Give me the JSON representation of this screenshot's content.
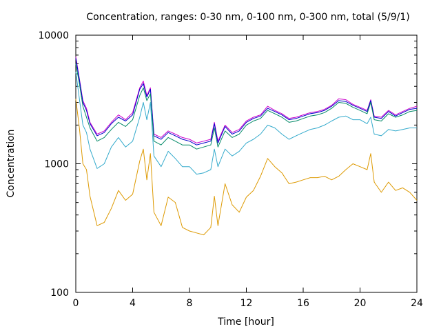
{
  "chart_data": {
    "type": "line",
    "title": "Concentration, ranges: 0-30 nm, 0-100 nm, 0-300 nm, total (5/9/1)",
    "xlabel": "Time [hour]",
    "ylabel": "Concentration",
    "xlim": [
      0,
      24
    ],
    "ylim": [
      100,
      10000
    ],
    "yscale": "log",
    "grid": false,
    "legend": "none",
    "x_ticks": [
      0,
      4,
      8,
      12,
      16,
      20,
      24
    ],
    "x_tick_labels": [
      "0",
      "4",
      "8",
      "12",
      "16",
      "20",
      "24"
    ],
    "y_ticks": [
      100,
      1000,
      10000
    ],
    "y_tick_labels": [
      "100",
      "1000",
      "10000"
    ],
    "x": [
      0,
      0.25,
      0.5,
      0.75,
      1,
      1.5,
      2,
      2.5,
      3,
      3.5,
      4,
      4.5,
      4.75,
      5,
      5.25,
      5.5,
      6,
      6.5,
      7,
      7.5,
      8,
      8.5,
      9,
      9.5,
      9.75,
      10,
      10.5,
      11,
      11.5,
      12,
      12.5,
      13,
      13.5,
      14,
      14.5,
      15,
      15.5,
      16,
      16.5,
      17,
      17.5,
      18,
      18.5,
      19,
      19.5,
      20,
      20.5,
      20.75,
      21,
      21.5,
      22,
      22.5,
      23,
      23.5,
      24
    ],
    "series": [
      {
        "color": "#cc00cc",
        "values": [
          6800,
          4600,
          3100,
          2700,
          2100,
          1700,
          1800,
          2100,
          2400,
          2200,
          2500,
          3900,
          4400,
          3400,
          3900,
          1700,
          1600,
          1800,
          1700,
          1600,
          1550,
          1450,
          1500,
          1550,
          2100,
          1500,
          2000,
          1750,
          1850,
          2150,
          2300,
          2400,
          2800,
          2600,
          2450,
          2250,
          2300,
          2400,
          2500,
          2550,
          2650,
          2850,
          3200,
          3150,
          2900,
          2750,
          2600,
          3150,
          2350,
          2300,
          2600,
          2400,
          2550,
          2700,
          2800
        ]
      },
      {
        "color": "#0000cc",
        "values": [
          6600,
          4500,
          3000,
          2600,
          2050,
          1650,
          1750,
          2050,
          2300,
          2150,
          2400,
          3800,
          4200,
          3300,
          3800,
          1650,
          1550,
          1750,
          1650,
          1550,
          1500,
          1400,
          1450,
          1500,
          2050,
          1450,
          1950,
          1700,
          1800,
          2100,
          2250,
          2350,
          2700,
          2550,
          2400,
          2200,
          2250,
          2350,
          2450,
          2500,
          2600,
          2800,
          3100,
          3050,
          2850,
          2700,
          2550,
          3100,
          2300,
          2250,
          2550,
          2350,
          2500,
          2650,
          2700
        ]
      },
      {
        "color": "#008866",
        "values": [
          6000,
          4200,
          2800,
          2300,
          1900,
          1500,
          1600,
          1850,
          2100,
          1950,
          2200,
          3400,
          3900,
          3100,
          3500,
          1500,
          1400,
          1600,
          1500,
          1400,
          1400,
          1300,
          1350,
          1400,
          1900,
          1350,
          1800,
          1600,
          1700,
          2000,
          2150,
          2250,
          2600,
          2450,
          2300,
          2100,
          2150,
          2250,
          2350,
          2400,
          2500,
          2700,
          3000,
          2950,
          2750,
          2600,
          2450,
          3000,
          2200,
          2150,
          2450,
          2300,
          2400,
          2550,
          2600
        ]
      },
      {
        "color": "#33aacc",
        "values": [
          5200,
          3200,
          2000,
          1750,
          1300,
          920,
          1000,
          1350,
          1600,
          1350,
          1500,
          2300,
          3000,
          2200,
          3000,
          1150,
          950,
          1250,
          1100,
          950,
          950,
          830,
          850,
          900,
          1300,
          950,
          1300,
          1150,
          1250,
          1450,
          1550,
          1700,
          2000,
          1900,
          1700,
          1550,
          1650,
          1750,
          1850,
          1900,
          2000,
          2150,
          2300,
          2350,
          2200,
          2200,
          2050,
          2300,
          1700,
          1650,
          1850,
          1800,
          1850,
          1900,
          1900
        ]
      },
      {
        "color": "#dd9900",
        "values": [
          3200,
          1900,
          1000,
          900,
          560,
          330,
          350,
          450,
          620,
          520,
          580,
          1050,
          1300,
          750,
          1200,
          420,
          330,
          550,
          500,
          320,
          300,
          290,
          280,
          320,
          560,
          330,
          700,
          480,
          420,
          550,
          620,
          800,
          1100,
          950,
          850,
          700,
          720,
          750,
          780,
          780,
          800,
          750,
          800,
          900,
          1000,
          950,
          900,
          1200,
          720,
          600,
          720,
          620,
          650,
          600,
          520
        ]
      }
    ]
  }
}
